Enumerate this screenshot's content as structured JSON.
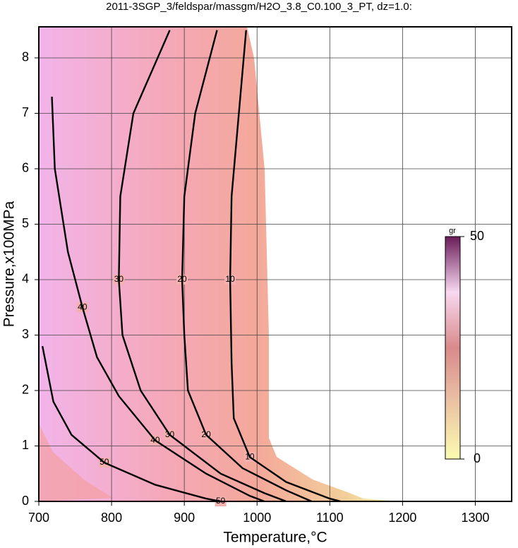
{
  "chart_data": {
    "type": "contour",
    "title": "2011-3SGP_3/feldspar/massgm/H2O_3.8_C0.100_3_PT, dz=1.0:",
    "x_label": "Temperature,°C",
    "y_label": "Pressure,x100MPa",
    "xlim": [
      700,
      1350
    ],
    "ylim": [
      0,
      8.56
    ],
    "xticks": [
      700,
      800,
      900,
      1000,
      1100,
      1200,
      1300
    ],
    "yticks": [
      0,
      1,
      2,
      3,
      4,
      5,
      6,
      7,
      8
    ],
    "grid": true,
    "contours": [
      {
        "level": 10,
        "x": [
          985,
          975,
          965,
          963,
          965,
          968,
          990,
          1040,
          1100,
          1115
        ],
        "y": [
          8.5,
          7,
          5.5,
          4,
          2.5,
          1.5,
          0.8,
          0.35,
          0.05,
          0
        ]
      },
      {
        "level": 20,
        "x": [
          945,
          915,
          900,
          897,
          900,
          905,
          930,
          980,
          1040,
          1075
        ],
        "y": [
          8.5,
          7,
          5.5,
          4,
          3,
          2,
          1.2,
          0.6,
          0.2,
          0
        ]
      },
      {
        "level": 30,
        "x": [
          880,
          830,
          812,
          810,
          815,
          840,
          880,
          950,
          1010,
          1040
        ],
        "y": [
          8.5,
          7,
          5.5,
          4,
          3,
          2,
          1.2,
          0.5,
          0.15,
          0
        ]
      },
      {
        "level": 40,
        "x": [
          718,
          722,
          740,
          760,
          780,
          810,
          860,
          930,
          990,
          1010
        ],
        "y": [
          7.3,
          6,
          4.5,
          3.5,
          2.6,
          1.9,
          1.1,
          0.5,
          0.1,
          0
        ]
      },
      {
        "level": 50,
        "x": [
          705,
          720,
          745,
          790,
          860,
          930,
          950
        ],
        "y": [
          2.8,
          1.8,
          1.2,
          0.7,
          0.3,
          0.05,
          0
        ]
      }
    ],
    "colorbar": {
      "label": "gr",
      "lim": [
        0,
        50
      ],
      "ticks": [
        0,
        50
      ]
    }
  }
}
